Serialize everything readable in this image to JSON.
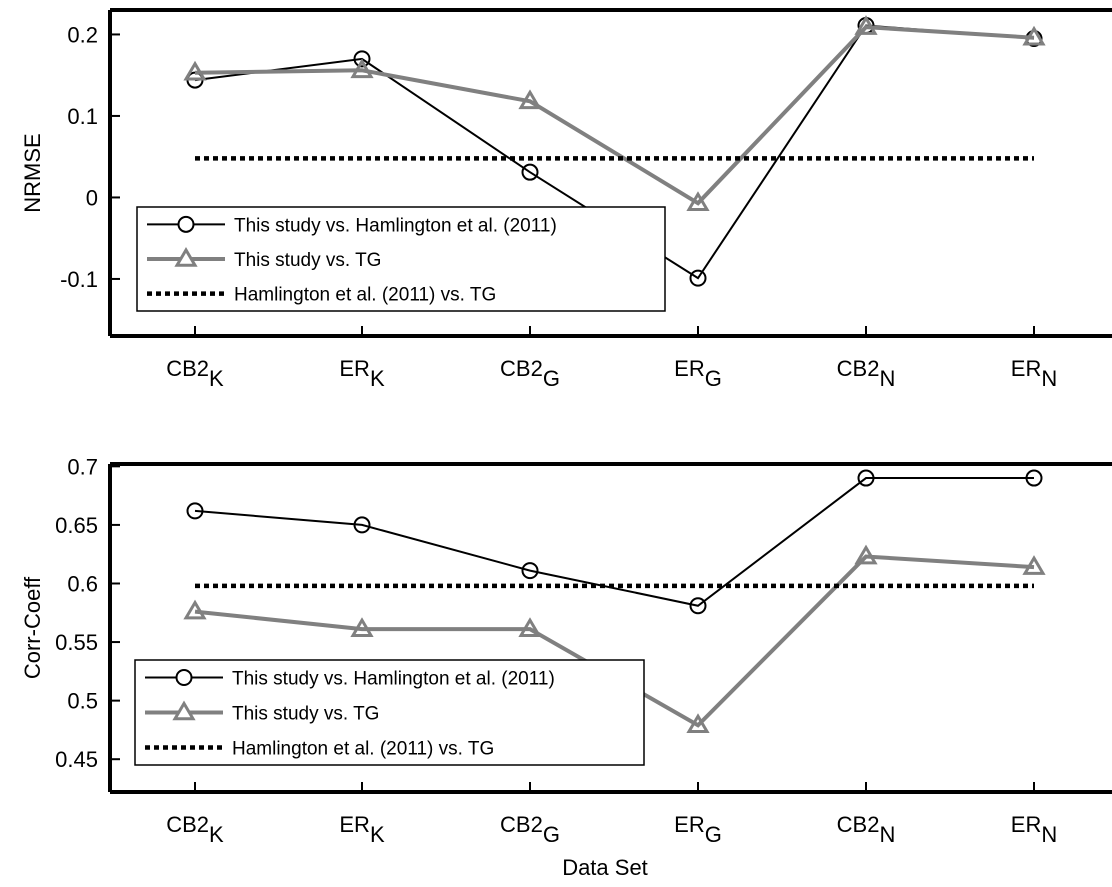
{
  "colors": {
    "hamlington": "#000000",
    "tg": "#808080",
    "baseline": "#000000",
    "background": "#ffffff"
  },
  "chart_data": [
    {
      "type": "line",
      "ylabel": "NRMSE",
      "xlabel": "",
      "ylim": [
        -0.17,
        0.23
      ],
      "yticks": [
        -0.1,
        0,
        0.1,
        0.2
      ],
      "ytick_labels": [
        "-0.1",
        "0",
        "0.1",
        "0.2"
      ],
      "categories": [
        {
          "base": "CB2",
          "sub": "K"
        },
        {
          "base": "ER",
          "sub": "K"
        },
        {
          "base": "CB2",
          "sub": "G"
        },
        {
          "base": "ER",
          "sub": "G"
        },
        {
          "base": "CB2",
          "sub": "N"
        },
        {
          "base": "ER",
          "sub": "N"
        }
      ],
      "grid": false,
      "legend_position": "bottom-left",
      "series": [
        {
          "name": "This study vs. Hamlington et al. (2011)",
          "marker": "circle",
          "color": "#000000",
          "values": [
            0.144,
            0.17,
            0.031,
            -0.099,
            0.211,
            0.195
          ]
        },
        {
          "name": "This study vs. TG",
          "marker": "triangle",
          "color": "#808080",
          "values": [
            0.153,
            0.156,
            0.118,
            -0.007,
            0.209,
            0.196
          ]
        },
        {
          "name": "Hamlington et al. (2011) vs. TG",
          "marker": "none",
          "color": "#000000",
          "dashed": true,
          "values": [
            0.048,
            0.048,
            0.048,
            0.048,
            0.048,
            0.048
          ]
        }
      ]
    },
    {
      "type": "line",
      "ylabel": "Corr-Coeff",
      "xlabel": "Data Set",
      "ylim": [
        0.422,
        0.702
      ],
      "yticks": [
        0.45,
        0.5,
        0.55,
        0.6,
        0.65,
        0.7
      ],
      "ytick_labels": [
        "0.45",
        "0.5",
        "0.55",
        "0.6",
        "0.65",
        "0.7"
      ],
      "categories": [
        {
          "base": "CB2",
          "sub": "K"
        },
        {
          "base": "ER",
          "sub": "K"
        },
        {
          "base": "CB2",
          "sub": "G"
        },
        {
          "base": "ER",
          "sub": "G"
        },
        {
          "base": "CB2",
          "sub": "N"
        },
        {
          "base": "ER",
          "sub": "N"
        }
      ],
      "grid": false,
      "legend_position": "bottom-left",
      "series": [
        {
          "name": "This study vs. Hamlington et al. (2011)",
          "marker": "circle",
          "color": "#000000",
          "values": [
            0.662,
            0.65,
            0.611,
            0.581,
            0.69,
            0.69
          ]
        },
        {
          "name": "This study vs. TG",
          "marker": "triangle",
          "color": "#808080",
          "values": [
            0.576,
            0.561,
            0.561,
            0.479,
            0.623,
            0.614
          ]
        },
        {
          "name": "Hamlington et al. (2011) vs. TG",
          "marker": "none",
          "color": "#000000",
          "dashed": true,
          "values": [
            0.598,
            0.598,
            0.598,
            0.598,
            0.598,
            0.598
          ]
        }
      ]
    }
  ]
}
